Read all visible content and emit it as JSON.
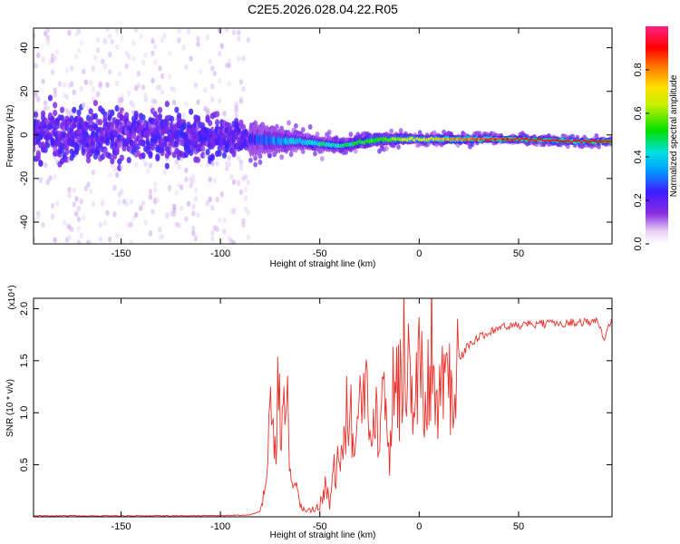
{
  "title": "C2E5.2026.028.04.22.R05",
  "colors": {
    "snr_line": "#e8322c",
    "background": "#ffffff",
    "axis": "#000000"
  },
  "chart_data": [
    {
      "type": "heatmap",
      "xlabel": "Height of straight line (km)",
      "ylabel": "Frequency (Hz)",
      "xlim": [
        -194,
        97
      ],
      "ylim": [
        -50,
        49
      ],
      "xticks": [
        -150,
        -100,
        -50,
        0,
        50
      ],
      "yticks": [
        -40,
        -20,
        0,
        20,
        40
      ],
      "colorbar": {
        "label": "Normalized spectral amplitude",
        "range": [
          0,
          1
        ],
        "ticks": [
          0.0,
          0.2,
          0.4,
          0.6,
          0.8
        ],
        "colormap": "rainbow (violet → blue → cyan → green → yellow → red → magenta)"
      },
      "trend": [
        {
          "x": -194,
          "freq": 0,
          "spread": 22,
          "amp": 0.05
        },
        {
          "x": -150,
          "freq": 0,
          "spread": 20,
          "amp": 0.08
        },
        {
          "x": -100,
          "freq": -1,
          "spread": 16,
          "amp": 0.1
        },
        {
          "x": -85,
          "freq": -2,
          "spread": 8,
          "amp": 0.25
        },
        {
          "x": -60,
          "freq": -3,
          "spread": 4,
          "amp": 0.4
        },
        {
          "x": -40,
          "freq": -5,
          "spread": 3,
          "amp": 0.45
        },
        {
          "x": -20,
          "freq": -2,
          "spread": 3,
          "amp": 0.55
        },
        {
          "x": 0,
          "freq": -2,
          "spread": 2,
          "amp": 0.7
        },
        {
          "x": 20,
          "freq": -2,
          "spread": 2,
          "amp": 0.8
        },
        {
          "x": 50,
          "freq": -2,
          "spread": 1.5,
          "amp": 0.9
        },
        {
          "x": 80,
          "freq": -3,
          "spread": 1.5,
          "amp": 0.92
        },
        {
          "x": 97,
          "freq": -3,
          "spread": 1.5,
          "amp": 0.95
        }
      ]
    },
    {
      "type": "line",
      "xlabel": "Height of straight line (km)",
      "ylabel": "SNR (10 * v/v)",
      "multiplier": "(x10⁴)",
      "xlim": [
        -194,
        97
      ],
      "ylim": [
        0,
        2.1
      ],
      "xticks": [
        -150,
        -100,
        -50,
        0,
        50
      ],
      "yticks": [
        0.5,
        1.0,
        1.5,
        2.0
      ],
      "series": [
        {
          "x": [
            -194,
            -150,
            -100,
            -85,
            -80,
            -77,
            -75,
            -73,
            -71,
            -69,
            -67,
            -65,
            -60,
            -55,
            -50,
            -47,
            -45,
            -43,
            -40,
            -38,
            -35,
            -33,
            -30,
            -27,
            -25,
            -22,
            -20,
            -18,
            -15,
            -12,
            -10,
            -7,
            -5,
            -3,
            0,
            3,
            5,
            7,
            8,
            10,
            12,
            15,
            18,
            20,
            23,
            25,
            30,
            35,
            40,
            50,
            60,
            70,
            80,
            90,
            93,
            97
          ],
          "values": [
            0.01,
            0.01,
            0.01,
            0.02,
            0.05,
            0.3,
            0.9,
            0.6,
            1.1,
            0.7,
            1.3,
            0.5,
            0.1,
            0.06,
            0.1,
            0.35,
            0.1,
            0.45,
            0.5,
            0.7,
            1.2,
            0.6,
            0.9,
            1.5,
            0.7,
            1.3,
            0.8,
            1.8,
            0.6,
            1.5,
            1.2,
            1.8,
            1.35,
            1.0,
            1.4,
            1.1,
            1.3,
            2.1,
            0.9,
            1.2,
            1.2,
            1.4,
            1.4,
            1.5,
            1.6,
            1.65,
            1.72,
            1.78,
            1.82,
            1.84,
            1.85,
            1.86,
            1.87,
            1.88,
            1.7,
            1.92
          ]
        }
      ]
    }
  ]
}
